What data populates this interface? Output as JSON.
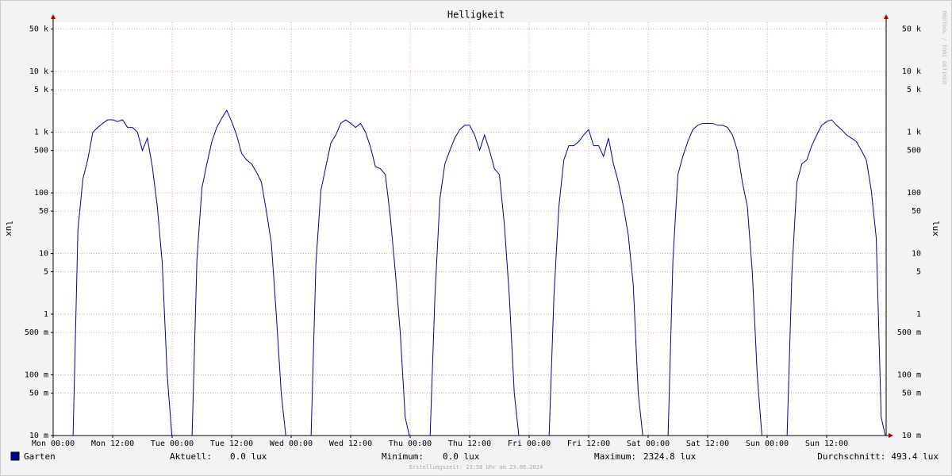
{
  "chart_data": {
    "type": "line",
    "title": "Helligkeit",
    "y_label": "lux",
    "side_label": "RRDTOOL / TOBI OETIKER",
    "footer": "Erstellungszeit: 23:58 Uhr am 23.06.2024",
    "log_scale": true,
    "grid": true,
    "xlim": [
      0,
      168
    ],
    "ylim": [
      0.01,
      65000
    ],
    "xticks": [
      {
        "value": 0,
        "label": "Mon 00:00"
      },
      {
        "value": 12,
        "label": "Mon 12:00"
      },
      {
        "value": 24,
        "label": "Tue 00:00"
      },
      {
        "value": 36,
        "label": "Tue 12:00"
      },
      {
        "value": 48,
        "label": "Wed 00:00"
      },
      {
        "value": 60,
        "label": "Wed 12:00"
      },
      {
        "value": 72,
        "label": "Thu 00:00"
      },
      {
        "value": 84,
        "label": "Thu 12:00"
      },
      {
        "value": 96,
        "label": "Fri 00:00"
      },
      {
        "value": 108,
        "label": "Fri 12:00"
      },
      {
        "value": 120,
        "label": "Sat 00:00"
      },
      {
        "value": 132,
        "label": "Sat 12:00"
      },
      {
        "value": 144,
        "label": "Sun 00:00"
      },
      {
        "value": 156,
        "label": "Sun 12:00"
      }
    ],
    "yticks": [
      {
        "value": 0.01,
        "label": "10 m"
      },
      {
        "value": 0.05,
        "label": "50 m"
      },
      {
        "value": 0.1,
        "label": "100 m"
      },
      {
        "value": 0.5,
        "label": "500 m"
      },
      1,
      5,
      10,
      50,
      100,
      500,
      {
        "value": 1000,
        "label": "1 k"
      },
      {
        "value": 5000,
        "label": "5 k"
      },
      {
        "value": 10000,
        "label": "10 k"
      },
      {
        "value": 50000,
        "label": "50 k"
      }
    ],
    "x": [
      0,
      1,
      2,
      3,
      4,
      5,
      6,
      7,
      8,
      9,
      10,
      11,
      12,
      13,
      14,
      15,
      16,
      17,
      18,
      19,
      20,
      21,
      22,
      23,
      24,
      25,
      26,
      27,
      28,
      29,
      30,
      31,
      32,
      33,
      34,
      35,
      36,
      37,
      38,
      39,
      40,
      41,
      42,
      43,
      44,
      45,
      46,
      47,
      48,
      49,
      50,
      51,
      52,
      53,
      54,
      55,
      56,
      57,
      58,
      59,
      60,
      61,
      62,
      63,
      64,
      65,
      66,
      67,
      68,
      69,
      70,
      71,
      72,
      73,
      74,
      75,
      76,
      77,
      78,
      79,
      80,
      81,
      82,
      83,
      84,
      85,
      86,
      87,
      88,
      89,
      90,
      91,
      92,
      93,
      94,
      95,
      96,
      97,
      98,
      99,
      100,
      101,
      102,
      103,
      104,
      105,
      106,
      107,
      108,
      109,
      110,
      111,
      112,
      113,
      114,
      115,
      116,
      117,
      118,
      119,
      120,
      121,
      122,
      123,
      124,
      125,
      126,
      127,
      128,
      129,
      130,
      131,
      132,
      133,
      134,
      135,
      136,
      137,
      138,
      139,
      140,
      141,
      142,
      143,
      144,
      145,
      146,
      147,
      148,
      149,
      150,
      151,
      152,
      153,
      154,
      155,
      156,
      157,
      158,
      159,
      160,
      161,
      162,
      163,
      164,
      165,
      166,
      167,
      168
    ],
    "series": [
      {
        "name": "Garten",
        "color": "#0000a0",
        "values": [
          0,
          0,
          0,
          0,
          0,
          25,
          170,
          360,
          1000,
          1200,
          1400,
          1600,
          1600,
          1500,
          1600,
          1200,
          1200,
          1000,
          500,
          800,
          270,
          60,
          7,
          0.1,
          0,
          0,
          0,
          0,
          0,
          8,
          120,
          300,
          700,
          1200,
          1700,
          2300,
          1500,
          900,
          450,
          350,
          300,
          220,
          150,
          50,
          15,
          1,
          0.05,
          0,
          0,
          0,
          0,
          0,
          0,
          7,
          110,
          270,
          660,
          900,
          1400,
          1600,
          1400,
          1200,
          1400,
          1000,
          570,
          270,
          250,
          200,
          40,
          5,
          0.5,
          0.02,
          0,
          0,
          0,
          0,
          0,
          2,
          80,
          300,
          500,
          800,
          1100,
          1300,
          1300,
          900,
          500,
          900,
          500,
          250,
          200,
          30,
          2,
          0.05,
          0,
          0,
          0,
          0,
          0,
          0,
          0,
          2,
          60,
          350,
          600,
          600,
          700,
          900,
          1100,
          600,
          600,
          400,
          800,
          300,
          150,
          60,
          20,
          3,
          0.05,
          0,
          0,
          0,
          0,
          0,
          0,
          8,
          200,
          400,
          700,
          1100,
          1300,
          1400,
          1400,
          1400,
          1300,
          1300,
          1200,
          900,
          500,
          150,
          60,
          5,
          0.1,
          0,
          0,
          0,
          0,
          0,
          0,
          5,
          150,
          300,
          350,
          600,
          900,
          1300,
          1500,
          1600,
          1300,
          1100,
          900,
          800,
          700,
          500,
          350,
          110,
          18,
          0.02,
          0
        ]
      }
    ],
    "legend_stats": [
      {
        "label": "Aktuell:",
        "value": "0.0 lux"
      },
      {
        "label": "Minimum:",
        "value": "0.0 lux"
      },
      {
        "label": "Maximum:",
        "value": "2324.8 lux"
      },
      {
        "label": "Durchschnitt:",
        "value": "493.4 lux"
      }
    ]
  }
}
